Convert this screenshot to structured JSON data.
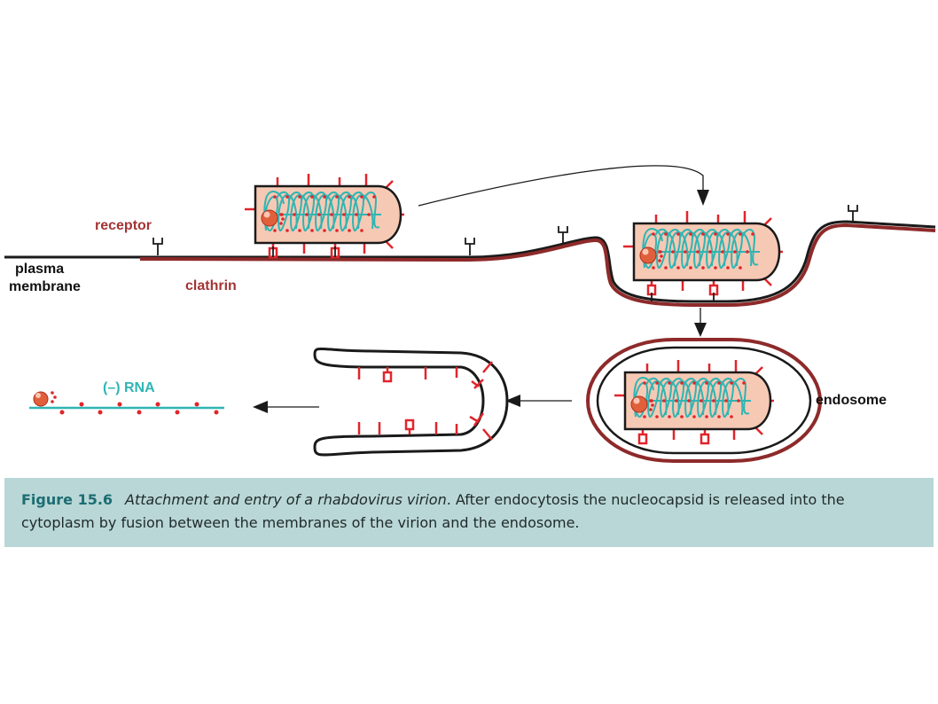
{
  "labels": {
    "receptor": "receptor",
    "plasma_membrane_line1": "plasma",
    "plasma_membrane_line2": "membrane",
    "clathrin": "clathrin",
    "endosome": "endosome",
    "rna": "(–) RNA"
  },
  "caption": {
    "figure_number": "Figure 15.6",
    "title": "Attachment and entry of a rhabdovirus virion",
    "text": ". After endocytosis the nucleocapsid is released into the cytoplasm by fusion between the membranes of the virion and the endosome."
  },
  "colors": {
    "membrane": "#1a1a1a",
    "clathrin": "#8e2a2a",
    "glycoprotein": "#e0252b",
    "rna_helix": "#2fb5b3",
    "virion_fill": "#f6c9b4",
    "caption_bg": "#b9d7d6",
    "figure_number": "#1c6d73",
    "label_red": "#a33434"
  }
}
